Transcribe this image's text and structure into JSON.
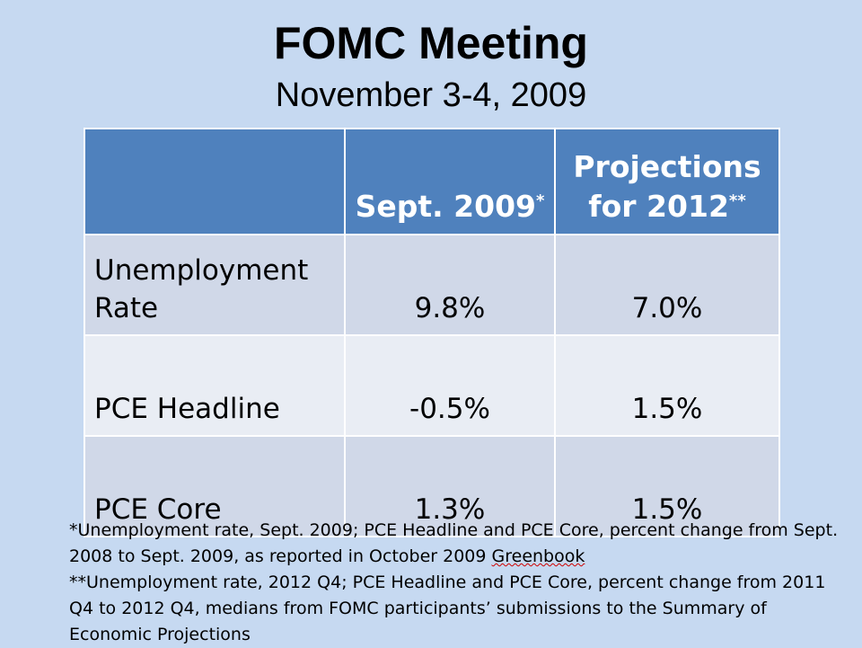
{
  "slide": {
    "title": "FOMC Meeting",
    "subtitle": "November 3-4, 2009"
  },
  "table": {
    "headers": [
      {
        "label": "",
        "marker": ""
      },
      {
        "label": "Sept. 2009",
        "marker": "*"
      },
      {
        "label_line1": "Projections",
        "label_line2": "for 2012",
        "marker": "**"
      }
    ],
    "rows": [
      {
        "label_line1": "Unemployment",
        "label_line2": "Rate",
        "sept_2009": "9.8%",
        "projection_2012": "7.0%"
      },
      {
        "label": "PCE Headline",
        "sept_2009": "-0.5%",
        "projection_2012": "1.5%"
      },
      {
        "label": "PCE Core",
        "sept_2009": "1.3%",
        "projection_2012": "1.5%"
      }
    ]
  },
  "footnotes": {
    "note1_main": "*Unemployment rate, Sept. 2009; PCE Headline and PCE Core, percent change from Sept. 2008 to Sept. 2009, as reported in October 2009 ",
    "note1_flagged_word": "Greenbook",
    "note2": "**Unemployment rate, 2012 Q4; PCE Headline and PCE Core, percent change from 2011 Q4 to 2012 Q4, medians from FOMC participants’ submissions to the Summary of Economic Projections"
  },
  "colors": {
    "background": "#c6d9f1",
    "header_fill": "#4f81bd",
    "row_fill_odd": "#d0d8e8",
    "row_fill_even": "#e9edf4",
    "spellcheck_underline": "#d00000"
  }
}
